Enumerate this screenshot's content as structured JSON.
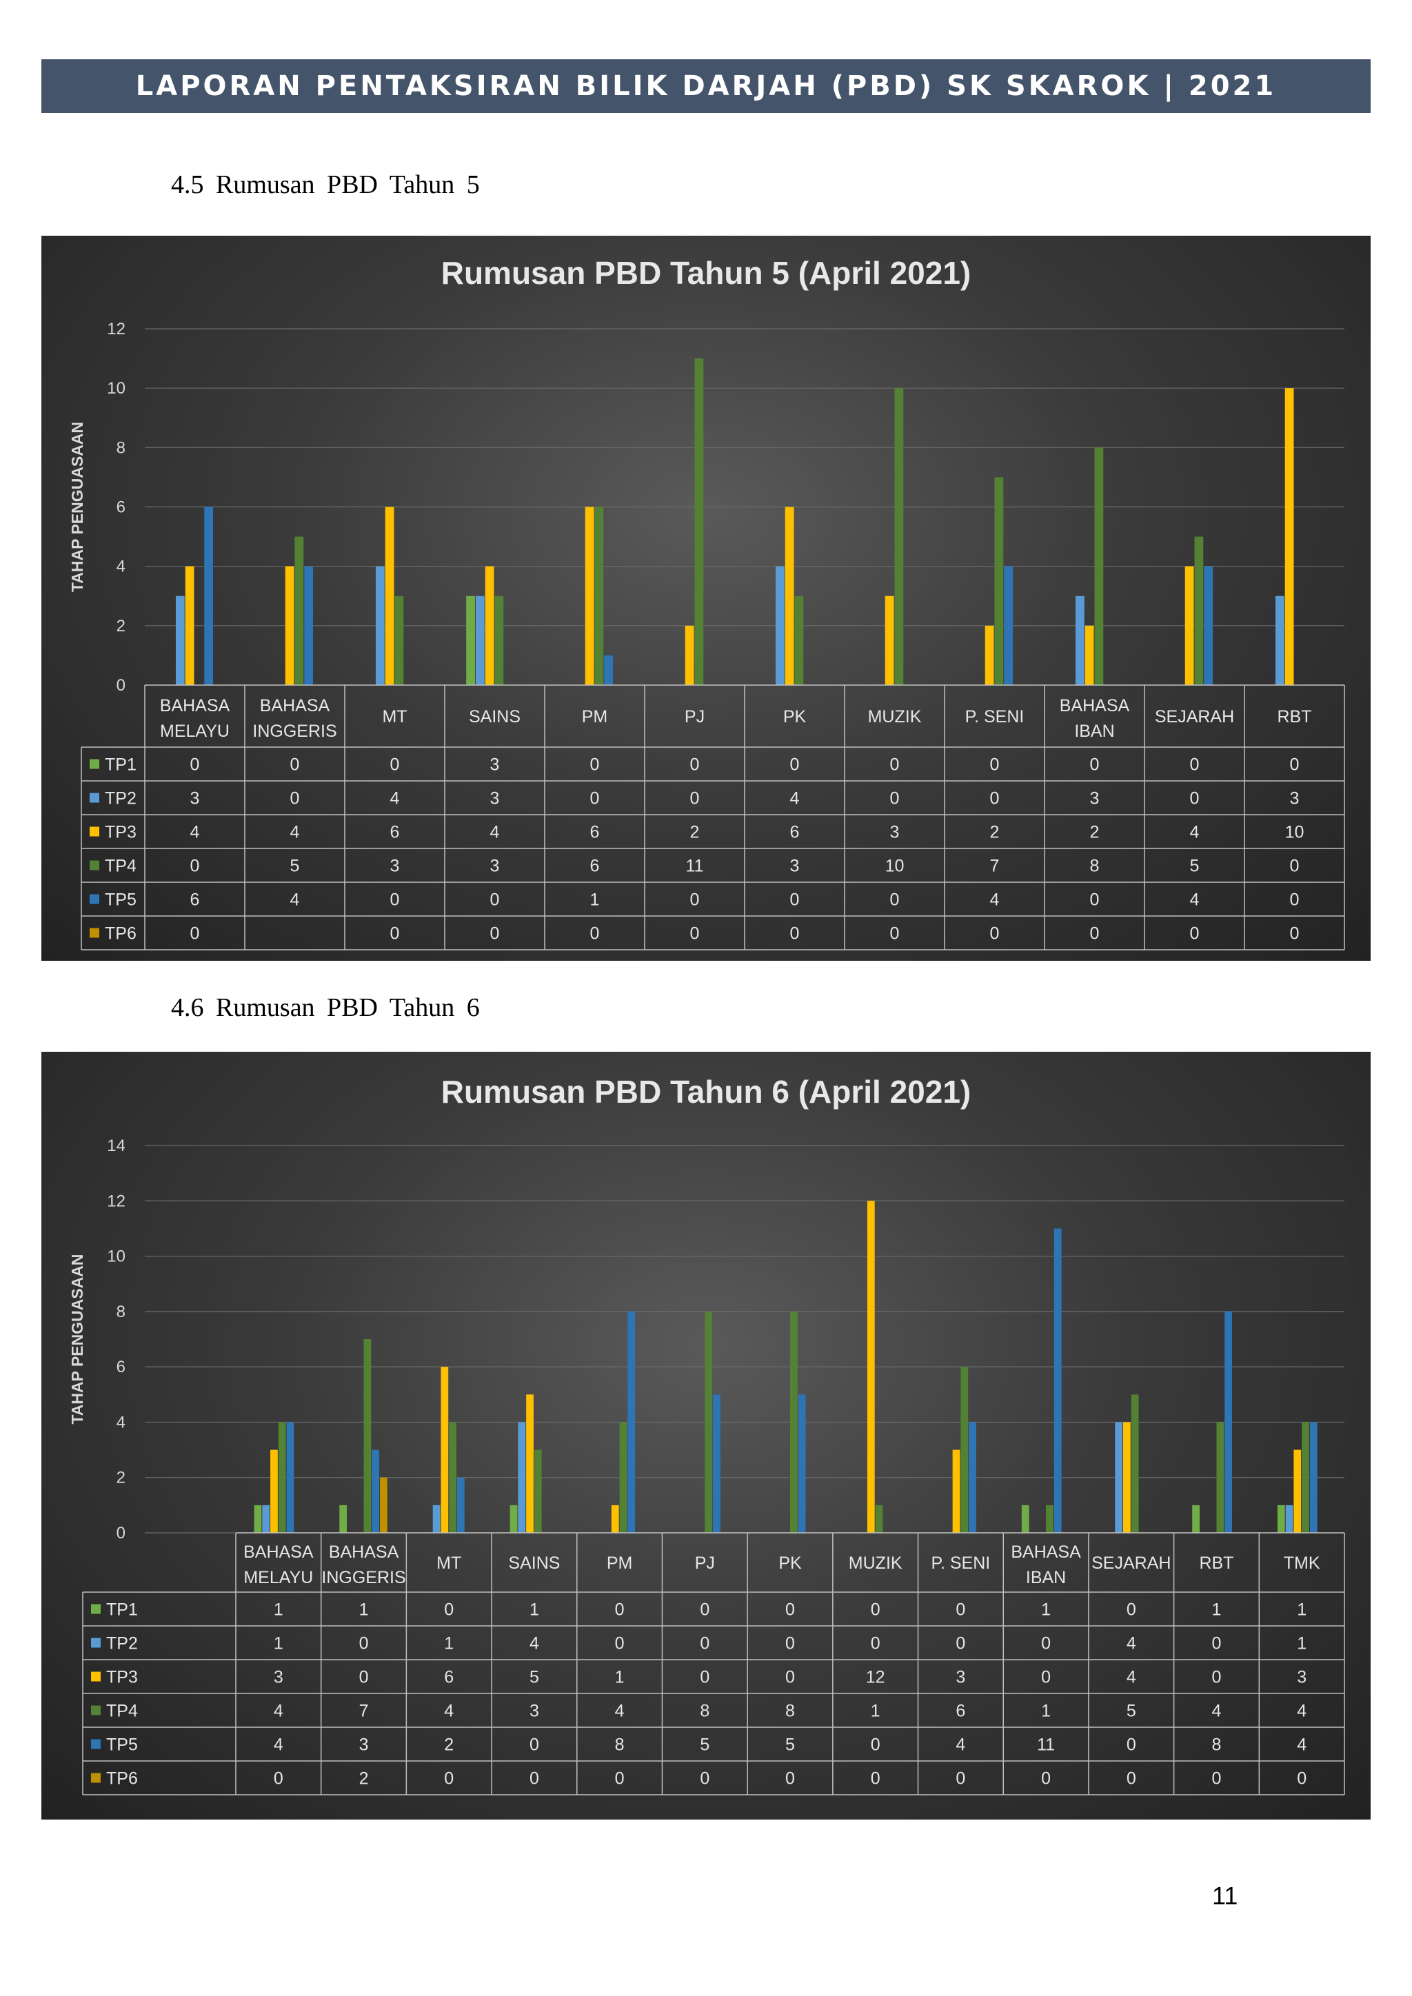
{
  "header": {
    "title": "LAPORAN PENTAKSIRAN BILIK DARJAH (PBD) SK SKAROK | 2021"
  },
  "sections": [
    {
      "title": "4.5 Rumusan  PBD  Tahun  5"
    },
    {
      "title": "4.6 Rumusan  PBD  Tahun  6"
    }
  ],
  "page_number": "11",
  "colors": {
    "TP1": "#70ad47",
    "TP2": "#5b9bd5",
    "TP3": "#ffc000",
    "TP4": "#548235",
    "TP5": "#2e75b6",
    "TP6": "#bf9000"
  },
  "chart_data": [
    {
      "type": "bar",
      "title": "Rumusan  PBD  Tahun  5 (April  2021)",
      "ylabel": "TAHAP PENGUASAAN",
      "ylim": [
        0,
        12
      ],
      "yticks": [
        0,
        2,
        4,
        6,
        8,
        10,
        12
      ],
      "categories": [
        [
          "BAHASA",
          "MELAYU"
        ],
        [
          "BAHASA",
          "INGGERIS"
        ],
        [
          "MT"
        ],
        [
          "SAINS"
        ],
        [
          "PM"
        ],
        [
          "PJ"
        ],
        [
          "PK"
        ],
        [
          "MUZIK"
        ],
        [
          "P. SENI"
        ],
        [
          "BAHASA",
          "IBAN"
        ],
        [
          "SEJARAH"
        ],
        [
          "RBT"
        ]
      ],
      "series": [
        {
          "name": "TP1",
          "values": [
            0,
            0,
            0,
            3,
            0,
            0,
            0,
            0,
            0,
            0,
            0,
            0
          ]
        },
        {
          "name": "TP2",
          "values": [
            3,
            0,
            4,
            3,
            0,
            0,
            4,
            0,
            0,
            3,
            0,
            3
          ]
        },
        {
          "name": "TP3",
          "values": [
            4,
            4,
            6,
            4,
            6,
            2,
            6,
            3,
            2,
            2,
            4,
            10
          ]
        },
        {
          "name": "TP4",
          "values": [
            0,
            5,
            3,
            3,
            6,
            11,
            3,
            10,
            7,
            8,
            5,
            0
          ]
        },
        {
          "name": "TP5",
          "values": [
            6,
            4,
            0,
            0,
            1,
            0,
            0,
            0,
            4,
            0,
            4,
            0
          ]
        },
        {
          "name": "TP6",
          "values": [
            0,
            null,
            0,
            0,
            0,
            0,
            0,
            0,
            0,
            0,
            0,
            0
          ]
        }
      ]
    },
    {
      "type": "bar",
      "title": "Rumusan  PBD  Tahun  6 (April  2021)",
      "ylabel": "TAHAP PENGUASAAN",
      "ylim": [
        0,
        14
      ],
      "yticks": [
        0,
        2,
        4,
        6,
        8,
        10,
        12,
        14
      ],
      "categories": [
        [
          "BAHASA",
          "MELAYU"
        ],
        [
          "BAHASA",
          "INGGERIS"
        ],
        [
          "MT"
        ],
        [
          "SAINS"
        ],
        [
          "PM"
        ],
        [
          "PJ"
        ],
        [
          "PK"
        ],
        [
          "MUZIK"
        ],
        [
          "P. SENI"
        ],
        [
          "BAHASA",
          "IBAN"
        ],
        [
          "SEJARAH"
        ],
        [
          "RBT"
        ],
        [
          "TMK"
        ]
      ],
      "series": [
        {
          "name": "TP1",
          "values": [
            1,
            1,
            0,
            1,
            0,
            0,
            0,
            0,
            0,
            1,
            0,
            1,
            1
          ]
        },
        {
          "name": "TP2",
          "values": [
            1,
            0,
            1,
            4,
            0,
            0,
            0,
            0,
            0,
            0,
            4,
            0,
            1
          ]
        },
        {
          "name": "TP3",
          "values": [
            3,
            0,
            6,
            5,
            1,
            0,
            0,
            12,
            3,
            0,
            4,
            0,
            3
          ]
        },
        {
          "name": "TP4",
          "values": [
            4,
            7,
            4,
            3,
            4,
            8,
            8,
            1,
            6,
            1,
            5,
            4,
            4
          ]
        },
        {
          "name": "TP5",
          "values": [
            4,
            3,
            2,
            0,
            8,
            5,
            5,
            0,
            4,
            11,
            0,
            8,
            4
          ]
        },
        {
          "name": "TP6",
          "values": [
            0,
            2,
            0,
            0,
            0,
            0,
            0,
            0,
            0,
            0,
            0,
            0,
            0
          ]
        }
      ]
    }
  ]
}
